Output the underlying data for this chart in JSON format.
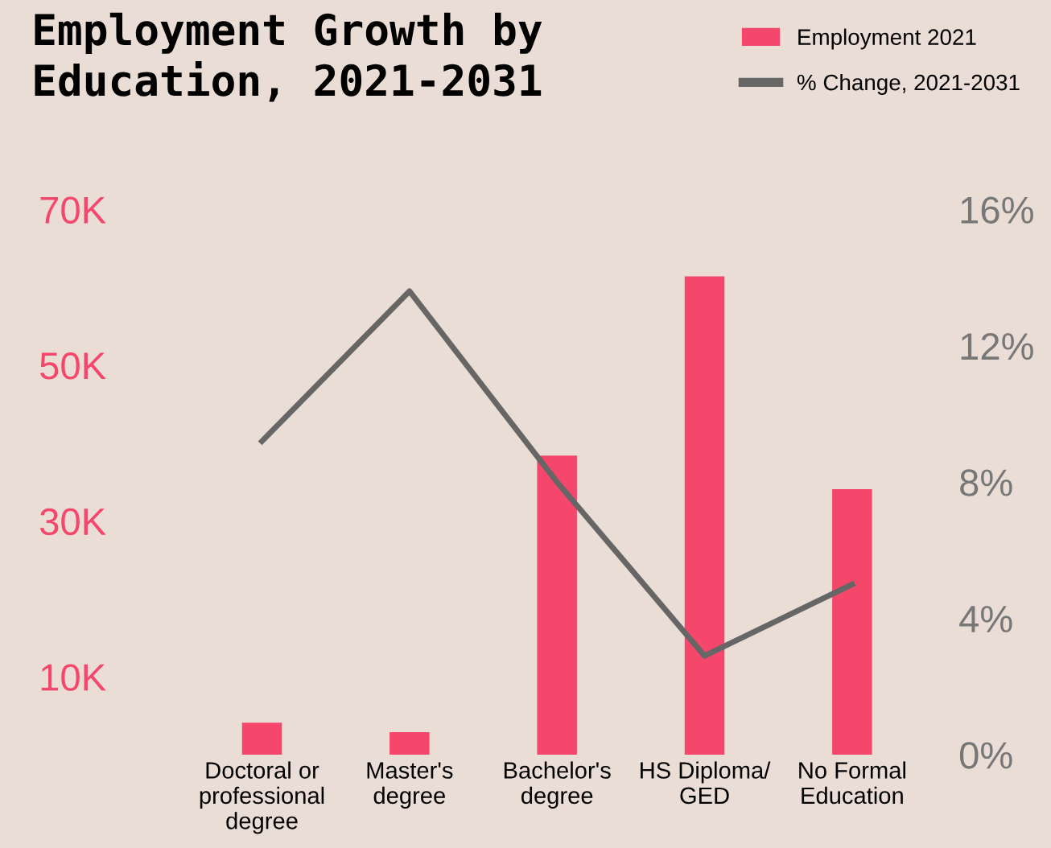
{
  "chart_data": {
    "type": "bar",
    "title": "Employment Growth by\nEducation, 2021-2031",
    "categories": [
      "Doctoral or\nprofessional\ndegree",
      "Master's\ndegree",
      "Bachelor's\ndegree",
      "HS Diploma/\nGED",
      "No Formal\nEducation"
    ],
    "series": [
      {
        "name": "Employment 2021",
        "color": "#f4476b",
        "values": [
          4100,
          2900,
          38400,
          61400,
          34100
        ]
      },
      {
        "name": "% Change, 2021-2031",
        "type": "line",
        "axis": "y2",
        "color": "#666666",
        "values": [
          9.2,
          13.6,
          8.0,
          2.9,
          5.0
        ]
      }
    ],
    "ylim": [
      0,
      70000
    ],
    "yticks": [
      {
        "value": 10000,
        "label": "10K"
      },
      {
        "value": 30000,
        "label": "30K"
      },
      {
        "value": 50000,
        "label": "50K"
      },
      {
        "value": 70000,
        "label": "70K"
      }
    ],
    "y2lim": [
      0,
      16
    ],
    "y2ticks": [
      {
        "value": 0,
        "label": "0%"
      },
      {
        "value": 4,
        "label": "4%"
      },
      {
        "value": 8,
        "label": "8%"
      },
      {
        "value": 12,
        "label": "12%"
      },
      {
        "value": 16,
        "label": "16%"
      }
    ],
    "legend": "top right",
    "grid": false,
    "marker": "none",
    "line_style": "solid"
  }
}
